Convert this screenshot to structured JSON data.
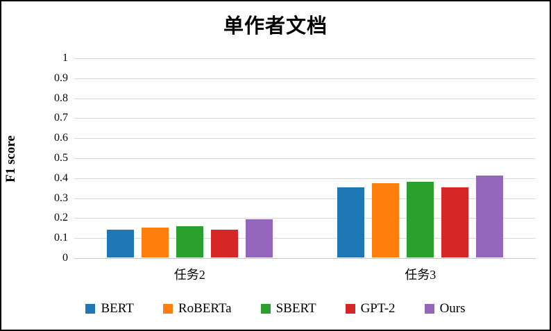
{
  "chart_data": {
    "type": "bar",
    "title": "单作者文档",
    "ylabel": "F1 score",
    "xlabel": "",
    "categories": [
      "任务2",
      "任务3"
    ],
    "series": [
      {
        "name": "BERT",
        "color": "#1F77B4",
        "values": [
          0.14,
          0.35
        ]
      },
      {
        "name": "RoBERTa",
        "color": "#FF7F0E",
        "values": [
          0.15,
          0.37
        ]
      },
      {
        "name": "SBERT",
        "color": "#2CA02C",
        "values": [
          0.155,
          0.38
        ]
      },
      {
        "name": "GPT-2",
        "color": "#D62728",
        "values": [
          0.14,
          0.35
        ]
      },
      {
        "name": "Ours",
        "color": "#9467BD",
        "values": [
          0.19,
          0.41
        ]
      }
    ],
    "ylim": [
      0,
      1
    ],
    "ytick_labels": [
      "0",
      "0.1",
      "0.2",
      "0.3",
      "0.4",
      "0.5",
      "0.6",
      "0.7",
      "0.8",
      "0.9",
      "1"
    ],
    "grid": true,
    "legend_position": "bottom",
    "colors": {
      "gridline": "#d9d9d9",
      "baseline": "#c6c6c6",
      "text": "#000000",
      "frame_border": "#000000"
    }
  }
}
